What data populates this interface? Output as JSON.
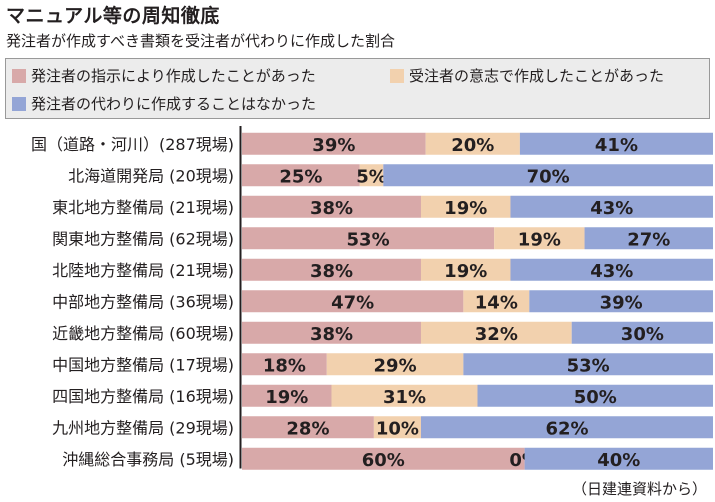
{
  "title": "マニュアル等の周知徹底",
  "subtitle": "発注者が作成すべき書類を受注者が代わりに作成した割合",
  "legend": [
    {
      "label": "発注者の指示により作成したことがあった",
      "color": "#d8a9a9"
    },
    {
      "label": "受注者の意志で作成したことがあった",
      "color": "#f2d1ae"
    },
    {
      "label": "発注者の代わりに作成することはなかった",
      "color": "#94a5d6"
    }
  ],
  "source": "（日建連資料から）",
  "chart_data": {
    "type": "bar",
    "orientation": "horizontal",
    "stacked": true,
    "percent_labels": true,
    "categories": [
      "国（道路・河川）(287現場)",
      "北海道開発局 (20現場)",
      "東北地方整備局 (21現場)",
      "関東地方整備局 (62現場)",
      "北陸地方整備局 (21現場)",
      "中部地方整備局 (36現場)",
      "近畿地方整備局 (60現場)",
      "中国地方整備局 (17現場)",
      "四国地方整備局 (16現場)",
      "九州地方整備局 (29現場)",
      "沖縄総合事務局 (5現場)"
    ],
    "series": [
      {
        "name": "発注者の指示により作成したことがあった",
        "values": [
          39,
          25,
          38,
          53,
          38,
          47,
          38,
          18,
          19,
          28,
          60
        ],
        "color": "#d8a9a9"
      },
      {
        "name": "受注者の意志で作成したことがあった",
        "values": [
          20,
          5,
          19,
          19,
          19,
          14,
          32,
          29,
          31,
          10,
          0
        ],
        "color": "#f2d1ae"
      },
      {
        "name": "発注者の代わりに作成することはなかった",
        "values": [
          41,
          70,
          43,
          27,
          43,
          39,
          30,
          53,
          50,
          62,
          40
        ],
        "color": "#94a5d6"
      }
    ]
  }
}
